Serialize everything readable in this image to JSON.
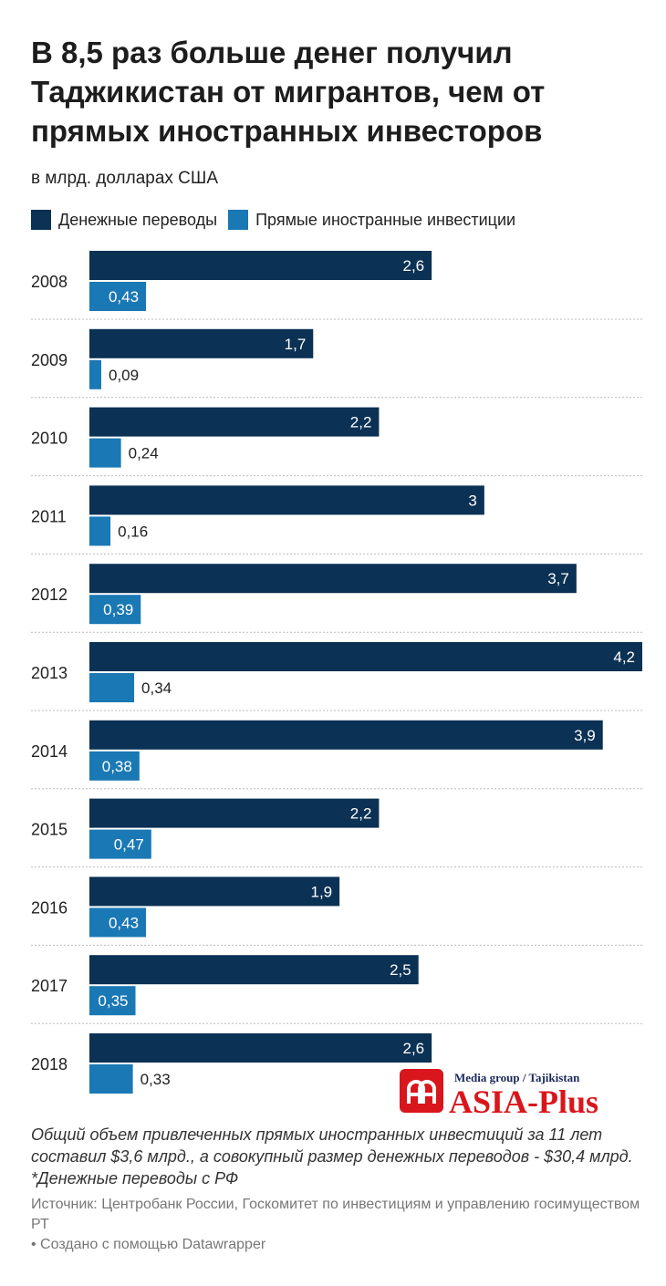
{
  "title": "В 8,5 раз больше денег получил Таджикистан от мигрантов, чем от прямых иностранных инвесторов",
  "subtitle": "в млрд. долларах США",
  "colors": {
    "remittances": "#0b3154",
    "fdi": "#1a78b4"
  },
  "chart_data": {
    "type": "bar",
    "orientation": "horizontal",
    "categories": [
      "2008",
      "2009",
      "2010",
      "2011",
      "2012",
      "2013",
      "2014",
      "2015",
      "2016",
      "2017",
      "2018"
    ],
    "series": [
      {
        "name": "Денежные переводы",
        "values": [
          2.6,
          1.7,
          2.2,
          3,
          3.7,
          4.2,
          3.9,
          2.2,
          1.9,
          2.5,
          2.6
        ],
        "labels": [
          "2,6",
          "1,7",
          "2,2",
          "3",
          "3,7",
          "4,2",
          "3,9",
          "2,2",
          "1,9",
          "2,5",
          "2,6"
        ]
      },
      {
        "name": "Прямые иностранные инвестиции",
        "values": [
          0.43,
          0.09,
          0.24,
          0.16,
          0.39,
          0.34,
          0.38,
          0.47,
          0.43,
          0.35,
          0.33
        ],
        "labels": [
          "0,43",
          "0,09",
          "0,24",
          "0,16",
          "0,39",
          "0,34",
          "0,38",
          "0,47",
          "0,43",
          "0,35",
          "0,33"
        ]
      }
    ],
    "xlim": [
      0,
      4.2
    ],
    "legend": "top-left",
    "grid": false
  },
  "notes": "Общий объем привлеченных прямых иностранных инвестиций за 11 лет составил $3,6 млрд., а совокупный размер денежных переводов - $30,4 млрд. *Денежные переводы с РФ",
  "source": "Источник: Центробанк России, Госкомитет по инвестициям и управлению госимуществом РТ",
  "credit": "• Создано с помощью Datawrapper",
  "logo": {
    "tagline": "Media group / Tajikistan",
    "name": "ASIA-Plus"
  }
}
